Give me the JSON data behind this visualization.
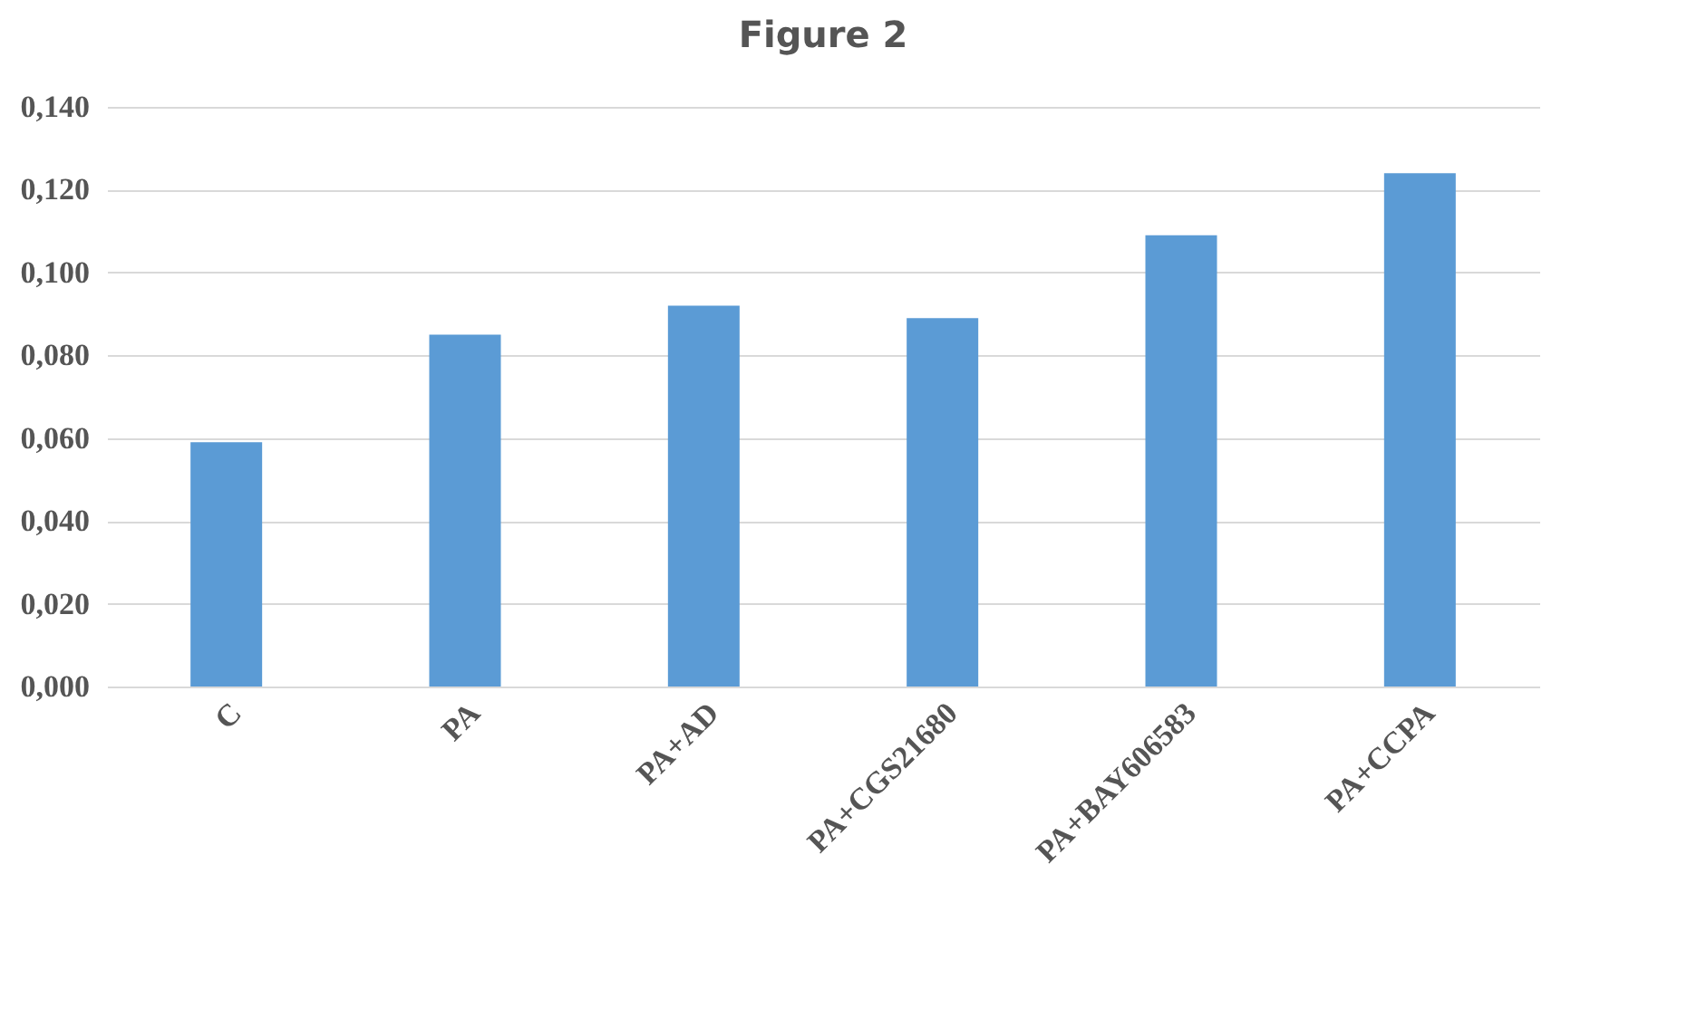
{
  "chart_data": {
    "type": "bar",
    "title": "Figure 2",
    "categories": [
      "C",
      "PA",
      "PA+AD",
      "PA+CGS21680",
      "PA+BAY606583",
      "PA+CCPA"
    ],
    "values": [
      0.059,
      0.085,
      0.092,
      0.089,
      0.109,
      0.124
    ],
    "color": "#5b9bd5",
    "ylim": [
      0,
      0.14
    ],
    "yticks": [
      {
        "value": 0,
        "label": "0,000"
      },
      {
        "value": 0.02,
        "label": "0,020"
      },
      {
        "value": 0.04,
        "label": "0,040"
      },
      {
        "value": 0.06,
        "label": "0,060"
      },
      {
        "value": 0.08,
        "label": "0,080"
      },
      {
        "value": 0.1,
        "label": "0,100"
      },
      {
        "value": 0.12,
        "label": "0,120"
      },
      {
        "value": 0.14,
        "label": "0,140"
      }
    ],
    "grid": "y"
  }
}
